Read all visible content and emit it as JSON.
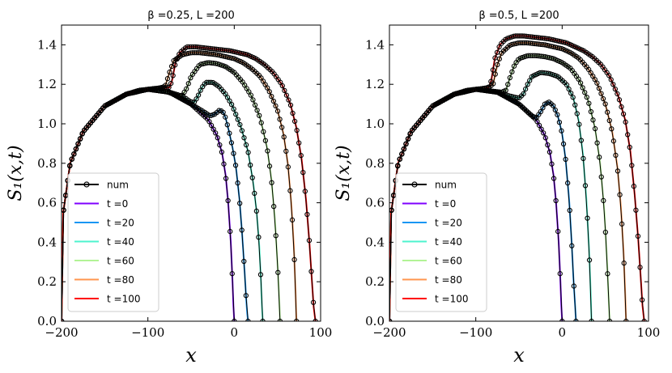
{
  "chart_data": [
    {
      "type": "line",
      "title": "β =0.25, L =200",
      "xlabel": "x",
      "ylabel": "S₁(x,t)",
      "xlim": [
        -200,
        100
      ],
      "ylim": [
        0.0,
        1.5
      ],
      "xticks": [
        -200,
        -100,
        0,
        100
      ],
      "xtick_labels": [
        "−200",
        "−100",
        "0",
        "100"
      ],
      "yticks": [
        0.0,
        0.2,
        0.4,
        0.6,
        0.8,
        1.0,
        1.2,
        1.4
      ],
      "ytick_labels": [
        "0.0",
        "0.2",
        "0.4",
        "0.6",
        "0.8",
        "1.0",
        "1.2",
        "1.4"
      ],
      "legend_position": "bottom-left",
      "legend": [
        {
          "label": "num",
          "color": "#000000",
          "marker": "o"
        },
        {
          "label": "t =0",
          "color": "#7f00ff"
        },
        {
          "label": "t =20",
          "color": "#1996f3"
        },
        {
          "label": "t =40",
          "color": "#4df3ce"
        },
        {
          "label": "t =60",
          "color": "#b2f396"
        },
        {
          "label": "t =80",
          "color": "#ff964f"
        },
        {
          "label": "t =100",
          "color": "#ff0000"
        }
      ],
      "series": [
        {
          "name": "t =0",
          "color": "#7f00ff",
          "x": [
            -200,
            -198,
            -190,
            -175,
            -150,
            -125,
            -100,
            -75,
            -50,
            -30,
            -20,
            -14,
            -10,
            -7,
            -4,
            -2,
            -1,
            0
          ],
          "y": [
            0.0,
            0.55,
            0.8,
            0.96,
            1.09,
            1.15,
            1.175,
            1.16,
            1.1,
            1.02,
            0.94,
            0.85,
            0.74,
            0.6,
            0.4,
            0.2,
            0.08,
            0.0
          ]
        },
        {
          "name": "t =20",
          "color": "#1996f3",
          "x": [
            -200,
            -198,
            -190,
            -175,
            -150,
            -125,
            -100,
            -75,
            -50,
            -35,
            -28,
            -22,
            -17,
            -13,
            -10,
            -6,
            -2,
            2,
            6,
            9,
            12,
            14,
            15,
            16
          ],
          "y": [
            0.0,
            0.55,
            0.8,
            0.96,
            1.09,
            1.15,
            1.175,
            1.16,
            1.1,
            1.06,
            1.04,
            1.05,
            1.07,
            1.06,
            1.03,
            0.96,
            0.88,
            0.78,
            0.62,
            0.45,
            0.25,
            0.1,
            0.04,
            0.0
          ]
        },
        {
          "name": "t =40",
          "color": "#4df3ce",
          "x": [
            -200,
            -198,
            -190,
            -175,
            -150,
            -125,
            -100,
            -75,
            -60,
            -50,
            -46,
            -42,
            -38,
            -33,
            -25,
            -18,
            -10,
            -2,
            8,
            16,
            22,
            26,
            29,
            31,
            32,
            33
          ],
          "y": [
            0.0,
            0.55,
            0.8,
            0.96,
            1.09,
            1.15,
            1.175,
            1.16,
            1.14,
            1.11,
            1.11,
            1.14,
            1.18,
            1.21,
            1.21,
            1.19,
            1.15,
            1.09,
            0.98,
            0.86,
            0.7,
            0.55,
            0.38,
            0.2,
            0.08,
            0.0
          ]
        },
        {
          "name": "t =60",
          "color": "#b2f396",
          "x": [
            -200,
            -198,
            -190,
            -175,
            -150,
            -125,
            -100,
            -80,
            -70,
            -65,
            -60,
            -55,
            -50,
            -40,
            -30,
            -20,
            -10,
            0,
            10,
            20,
            30,
            38,
            43,
            47,
            50,
            52,
            53
          ],
          "y": [
            0.0,
            0.55,
            0.8,
            0.96,
            1.09,
            1.15,
            1.175,
            1.165,
            1.15,
            1.14,
            1.145,
            1.18,
            1.24,
            1.3,
            1.31,
            1.305,
            1.29,
            1.26,
            1.21,
            1.14,
            1.03,
            0.88,
            0.72,
            0.52,
            0.3,
            0.12,
            0.0
          ]
        },
        {
          "name": "t =80",
          "color": "#ff964f",
          "x": [
            -200,
            -198,
            -190,
            -175,
            -150,
            -125,
            -100,
            -90,
            -85,
            -80,
            -75,
            -70,
            -60,
            -50,
            -40,
            -30,
            -20,
            -10,
            0,
            10,
            20,
            30,
            40,
            50,
            57,
            62,
            66,
            69,
            71,
            72
          ],
          "y": [
            0.0,
            0.55,
            0.8,
            0.96,
            1.09,
            1.15,
            1.175,
            1.18,
            1.183,
            1.19,
            1.26,
            1.32,
            1.35,
            1.36,
            1.36,
            1.355,
            1.35,
            1.34,
            1.33,
            1.31,
            1.28,
            1.24,
            1.17,
            1.07,
            0.95,
            0.8,
            0.6,
            0.38,
            0.15,
            0.0
          ]
        },
        {
          "name": "t =100",
          "color": "#ff0000",
          "x": [
            -200,
            -198,
            -190,
            -175,
            -150,
            -125,
            -110,
            -100,
            -90,
            -80,
            -75,
            -72,
            -68,
            -63,
            -55,
            -45,
            -35,
            -25,
            -15,
            -5,
            5,
            15,
            25,
            35,
            45,
            55,
            65,
            72,
            78,
            83,
            87,
            90,
            92,
            94
          ],
          "y": [
            0.0,
            0.55,
            0.8,
            0.96,
            1.09,
            1.15,
            1.17,
            1.175,
            1.178,
            1.182,
            1.185,
            1.22,
            1.31,
            1.36,
            1.39,
            1.39,
            1.385,
            1.38,
            1.375,
            1.37,
            1.36,
            1.35,
            1.33,
            1.3,
            1.26,
            1.2,
            1.1,
            0.98,
            0.82,
            0.62,
            0.4,
            0.2,
            0.07,
            0.0
          ]
        }
      ]
    },
    {
      "type": "line",
      "title": "β =0.5, L =200",
      "xlabel": "x",
      "ylabel": "S₁(x,t)",
      "xlim": [
        -200,
        100
      ],
      "ylim": [
        0.0,
        1.5
      ],
      "xticks": [
        -200,
        -100,
        0,
        100
      ],
      "xtick_labels": [
        "−200",
        "−100",
        "0",
        "100"
      ],
      "yticks": [
        0.0,
        0.2,
        0.4,
        0.6,
        0.8,
        1.0,
        1.2,
        1.4
      ],
      "ytick_labels": [
        "0.0",
        "0.2",
        "0.4",
        "0.6",
        "0.8",
        "1.0",
        "1.2",
        "1.4"
      ],
      "legend_position": "bottom-left",
      "legend": [
        {
          "label": "num",
          "color": "#000000",
          "marker": "o"
        },
        {
          "label": "t =0",
          "color": "#7f00ff"
        },
        {
          "label": "t =20",
          "color": "#1996f3"
        },
        {
          "label": "t =40",
          "color": "#4df3ce"
        },
        {
          "label": "t =60",
          "color": "#b2f396"
        },
        {
          "label": "t =80",
          "color": "#ff964f"
        },
        {
          "label": "t =100",
          "color": "#ff0000"
        }
      ],
      "series": [
        {
          "name": "t =0",
          "color": "#7f00ff",
          "x": [
            -200,
            -198,
            -190,
            -175,
            -150,
            -125,
            -100,
            -75,
            -50,
            -30,
            -20,
            -14,
            -10,
            -7,
            -4,
            -2,
            -1,
            0
          ],
          "y": [
            0.0,
            0.55,
            0.8,
            0.96,
            1.09,
            1.15,
            1.175,
            1.16,
            1.1,
            1.02,
            0.94,
            0.85,
            0.74,
            0.6,
            0.4,
            0.2,
            0.08,
            0.0
          ]
        },
        {
          "name": "t =20",
          "color": "#1996f3",
          "x": [
            -200,
            -198,
            -190,
            -175,
            -150,
            -125,
            -100,
            -75,
            -50,
            -40,
            -35,
            -30,
            -25,
            -20,
            -15,
            -10,
            -5,
            0,
            4,
            8,
            11,
            13,
            15,
            16
          ],
          "y": [
            0.0,
            0.55,
            0.8,
            0.96,
            1.09,
            1.15,
            1.175,
            1.16,
            1.1,
            1.06,
            1.04,
            1.03,
            1.06,
            1.1,
            1.11,
            1.09,
            1.04,
            0.95,
            0.82,
            0.62,
            0.4,
            0.22,
            0.08,
            0.0
          ]
        },
        {
          "name": "t =40",
          "color": "#4df3ce",
          "x": [
            -200,
            -198,
            -190,
            -175,
            -150,
            -125,
            -100,
            -75,
            -60,
            -50,
            -45,
            -40,
            -35,
            -25,
            -15,
            -5,
            5,
            13,
            19,
            24,
            28,
            31,
            33,
            34
          ],
          "y": [
            0.0,
            0.55,
            0.8,
            0.96,
            1.09,
            1.15,
            1.175,
            1.16,
            1.14,
            1.13,
            1.15,
            1.2,
            1.24,
            1.26,
            1.255,
            1.24,
            1.2,
            1.13,
            1.02,
            0.85,
            0.62,
            0.38,
            0.15,
            0.0
          ]
        },
        {
          "name": "t =60",
          "color": "#b2f396",
          "x": [
            -200,
            -198,
            -190,
            -175,
            -150,
            -125,
            -100,
            -80,
            -70,
            -65,
            -60,
            -55,
            -50,
            -40,
            -30,
            -20,
            -10,
            0,
            10,
            20,
            30,
            38,
            44,
            49,
            52,
            54,
            55
          ],
          "y": [
            0.0,
            0.55,
            0.8,
            0.96,
            1.09,
            1.15,
            1.175,
            1.165,
            1.16,
            1.17,
            1.24,
            1.3,
            1.33,
            1.345,
            1.345,
            1.34,
            1.33,
            1.31,
            1.28,
            1.22,
            1.12,
            0.98,
            0.8,
            0.55,
            0.3,
            0.1,
            0.0
          ]
        },
        {
          "name": "t =80",
          "color": "#ff964f",
          "x": [
            -200,
            -198,
            -190,
            -175,
            -150,
            -125,
            -100,
            -90,
            -85,
            -80,
            -75,
            -70,
            -60,
            -50,
            -40,
            -30,
            -20,
            -10,
            0,
            10,
            20,
            30,
            40,
            50,
            58,
            64,
            68,
            71,
            73,
            74
          ],
          "y": [
            0.0,
            0.55,
            0.8,
            0.96,
            1.09,
            1.15,
            1.175,
            1.18,
            1.185,
            1.2,
            1.3,
            1.36,
            1.4,
            1.41,
            1.41,
            1.405,
            1.4,
            1.39,
            1.38,
            1.36,
            1.33,
            1.28,
            1.21,
            1.1,
            0.96,
            0.78,
            0.58,
            0.36,
            0.14,
            0.0
          ]
        },
        {
          "name": "t =100",
          "color": "#ff0000",
          "x": [
            -200,
            -198,
            -190,
            -175,
            -150,
            -125,
            -110,
            -100,
            -90,
            -85,
            -82,
            -78,
            -72,
            -65,
            -55,
            -45,
            -35,
            -25,
            -15,
            -5,
            5,
            15,
            25,
            35,
            45,
            55,
            65,
            73,
            79,
            84,
            88,
            91,
            93,
            95
          ],
          "y": [
            0.0,
            0.55,
            0.8,
            0.96,
            1.09,
            1.15,
            1.17,
            1.175,
            1.178,
            1.185,
            1.22,
            1.33,
            1.4,
            1.43,
            1.445,
            1.445,
            1.44,
            1.435,
            1.43,
            1.42,
            1.41,
            1.39,
            1.37,
            1.34,
            1.3,
            1.24,
            1.14,
            1.02,
            0.86,
            0.64,
            0.42,
            0.22,
            0.08,
            0.0
          ]
        }
      ]
    }
  ]
}
